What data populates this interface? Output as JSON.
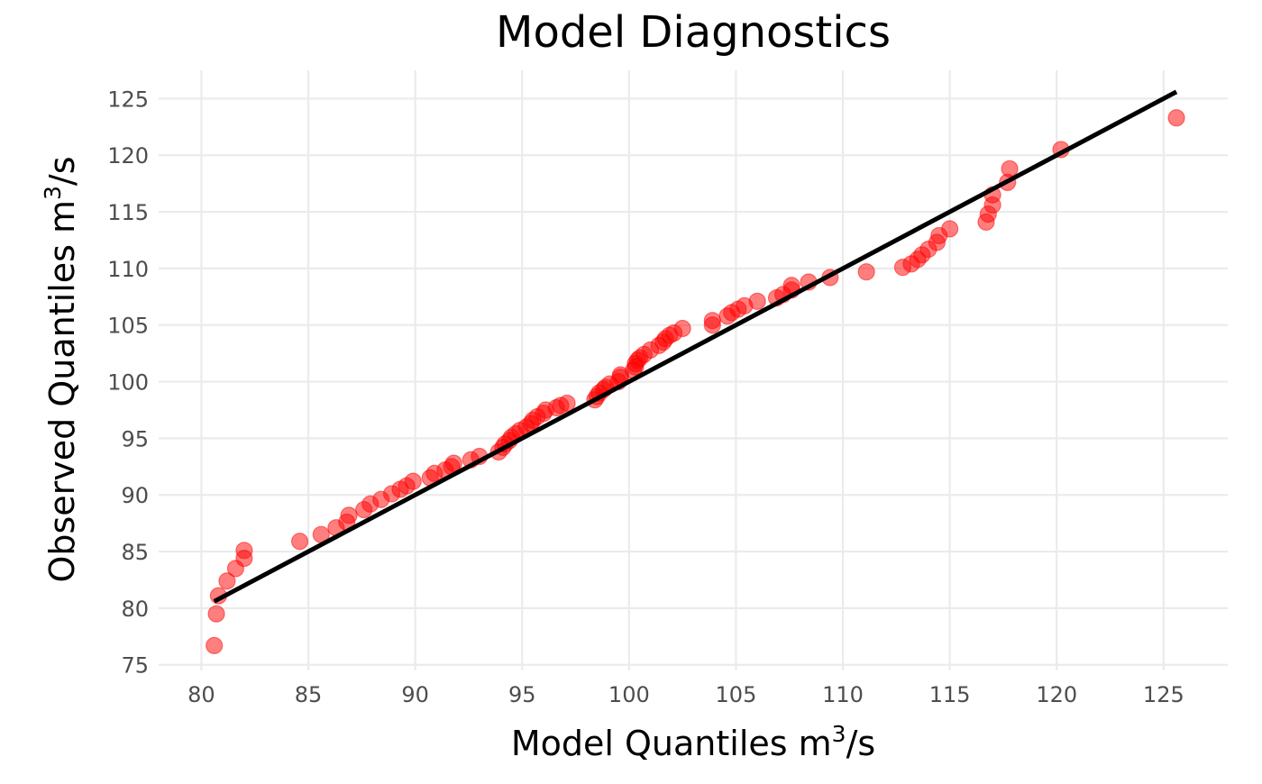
{
  "chart_data": {
    "type": "scatter",
    "title": "Model Diagnostics",
    "xlabel": {
      "base": "Model Quantiles m",
      "sup": "3",
      "tail": "/s"
    },
    "ylabel": {
      "base": "Observed Quantiles m",
      "sup": "3",
      "tail": "/s"
    },
    "xlim": [
      78,
      128
    ],
    "ylim": [
      74.5,
      127.5
    ],
    "x_ticks": [
      80,
      85,
      90,
      95,
      100,
      105,
      110,
      115,
      120,
      125
    ],
    "y_ticks": [
      75,
      80,
      85,
      90,
      95,
      100,
      105,
      110,
      115,
      120,
      125
    ],
    "grid": true,
    "legend": "none",
    "point_color": "#ff0000",
    "point_opacity": 0.5,
    "line_color": "#000000",
    "reference_line": {
      "x": [
        80.6,
        125.6
      ],
      "y": [
        80.6,
        125.6
      ]
    },
    "points": [
      [
        80.6,
        76.7
      ],
      [
        80.7,
        79.5
      ],
      [
        80.8,
        81.1
      ],
      [
        81.2,
        82.4
      ],
      [
        81.6,
        83.5
      ],
      [
        82.0,
        84.4
      ],
      [
        82.0,
        85.1
      ],
      [
        84.6,
        85.9
      ],
      [
        85.6,
        86.5
      ],
      [
        86.3,
        87.1
      ],
      [
        86.8,
        87.6
      ],
      [
        86.9,
        88.2
      ],
      [
        87.6,
        88.7
      ],
      [
        87.9,
        89.2
      ],
      [
        88.4,
        89.6
      ],
      [
        88.9,
        90.1
      ],
      [
        89.3,
        90.5
      ],
      [
        89.6,
        90.8
      ],
      [
        89.9,
        91.2
      ],
      [
        90.7,
        91.5
      ],
      [
        90.9,
        91.9
      ],
      [
        91.4,
        92.2
      ],
      [
        91.7,
        92.5
      ],
      [
        91.8,
        92.8
      ],
      [
        92.6,
        93.1
      ],
      [
        93.0,
        93.4
      ],
      [
        93.9,
        93.8
      ],
      [
        94.1,
        94.2
      ],
      [
        94.2,
        94.5
      ],
      [
        94.4,
        94.8
      ],
      [
        94.5,
        95.1
      ],
      [
        94.7,
        95.4
      ],
      [
        94.9,
        95.7
      ],
      [
        95.2,
        96.0
      ],
      [
        95.4,
        96.3
      ],
      [
        95.5,
        96.6
      ],
      [
        95.7,
        96.9
      ],
      [
        96.0,
        97.2
      ],
      [
        96.1,
        97.5
      ],
      [
        96.6,
        97.7
      ],
      [
        96.8,
        97.9
      ],
      [
        97.1,
        98.1
      ],
      [
        98.4,
        98.4
      ],
      [
        98.5,
        98.7
      ],
      [
        98.6,
        99.0
      ],
      [
        98.8,
        99.3
      ],
      [
        98.9,
        99.5
      ],
      [
        99.1,
        99.8
      ],
      [
        99.5,
        100.0
      ],
      [
        99.6,
        100.4
      ],
      [
        99.6,
        100.6
      ],
      [
        100.2,
        101.0
      ],
      [
        100.3,
        101.3
      ],
      [
        100.3,
        101.6
      ],
      [
        100.4,
        101.9
      ],
      [
        100.5,
        102.1
      ],
      [
        100.7,
        102.4
      ],
      [
        101.0,
        102.8
      ],
      [
        101.4,
        103.2
      ],
      [
        101.6,
        103.5
      ],
      [
        101.7,
        103.8
      ],
      [
        101.9,
        104.1
      ],
      [
        102.1,
        104.3
      ],
      [
        102.5,
        104.7
      ],
      [
        103.9,
        105.0
      ],
      [
        103.9,
        105.4
      ],
      [
        104.6,
        105.8
      ],
      [
        104.8,
        106.1
      ],
      [
        105.1,
        106.4
      ],
      [
        105.4,
        106.7
      ],
      [
        106.0,
        107.1
      ],
      [
        106.9,
        107.4
      ],
      [
        107.2,
        107.7
      ],
      [
        107.6,
        108.1
      ],
      [
        107.6,
        108.5
      ],
      [
        108.4,
        108.8
      ],
      [
        109.4,
        109.2
      ],
      [
        111.1,
        109.7
      ],
      [
        112.8,
        110.1
      ],
      [
        113.2,
        110.4
      ],
      [
        113.5,
        110.8
      ],
      [
        113.7,
        111.2
      ],
      [
        114.0,
        111.7
      ],
      [
        114.4,
        112.3
      ],
      [
        114.5,
        112.9
      ],
      [
        115.0,
        113.5
      ],
      [
        116.7,
        114.1
      ],
      [
        116.8,
        114.8
      ],
      [
        117.0,
        115.6
      ],
      [
        117.0,
        116.5
      ],
      [
        117.7,
        117.6
      ],
      [
        117.8,
        118.8
      ],
      [
        120.2,
        120.5
      ],
      [
        125.6,
        123.3
      ]
    ]
  }
}
